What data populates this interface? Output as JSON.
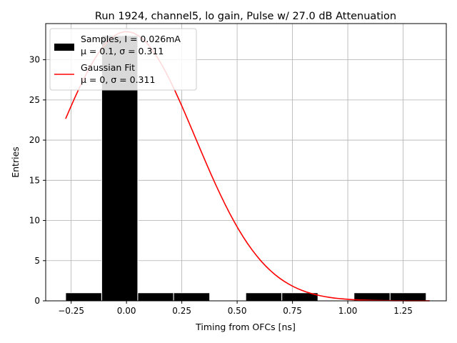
{
  "chart_data": {
    "type": "bar",
    "title": "Run 1924, channel5, lo gain, Pulse w/ 27.0 dB Attenuation",
    "xlabel": "Timing from OFCs [ns]",
    "ylabel": "Entries",
    "xlim": [
      -0.365,
      1.445
    ],
    "ylim": [
      0,
      34.5
    ],
    "grid": true,
    "legend_position": "top-left",
    "x_ticks": [
      -0.25,
      0.0,
      0.25,
      0.5,
      0.75,
      1.0,
      1.25
    ],
    "x_tick_labels": [
      "−0.25",
      "0.00",
      "0.25",
      "0.50",
      "0.75",
      "1.00",
      "1.25"
    ],
    "y_ticks": [
      0,
      5,
      10,
      15,
      20,
      25,
      30
    ],
    "y_tick_labels": [
      "0",
      "5",
      "10",
      "15",
      "20",
      "25",
      "30"
    ],
    "histogram": {
      "name": "Samples, I = 0.026mA",
      "stats_label": "μ = 0.1, σ = 0.311",
      "color": "#000000",
      "edge_color": "#ffffff",
      "bins": [
        {
          "x0": -0.275,
          "x1": -0.112,
          "count": 1
        },
        {
          "x0": -0.112,
          "x1": 0.051,
          "count": 33
        },
        {
          "x0": 0.051,
          "x1": 0.213,
          "count": 1
        },
        {
          "x0": 0.213,
          "x1": 0.376,
          "count": 1
        },
        {
          "x0": 0.376,
          "x1": 0.539,
          "count": 0
        },
        {
          "x0": 0.539,
          "x1": 0.702,
          "count": 1
        },
        {
          "x0": 0.702,
          "x1": 0.865,
          "count": 1
        },
        {
          "x0": 0.865,
          "x1": 1.028,
          "count": 0
        },
        {
          "x0": 1.028,
          "x1": 1.191,
          "count": 1
        },
        {
          "x0": 1.191,
          "x1": 1.354,
          "count": 1
        }
      ]
    },
    "fit": {
      "name": "Gaussian Fit",
      "stats_label": "μ = 0, σ = 0.311",
      "color": "#ff0000",
      "mu": 0.0,
      "sigma": 0.311,
      "amplitude": 33.5,
      "x_range": [
        -0.275,
        1.37
      ]
    }
  }
}
